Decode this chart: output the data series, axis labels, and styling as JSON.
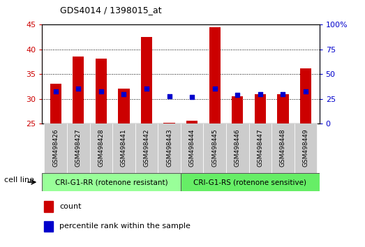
{
  "title": "GDS4014 / 1398015_at",
  "samples": [
    "GSM498426",
    "GSM498427",
    "GSM498428",
    "GSM498441",
    "GSM498442",
    "GSM498443",
    "GSM498444",
    "GSM498445",
    "GSM498446",
    "GSM498447",
    "GSM498448",
    "GSM498449"
  ],
  "count_values": [
    33,
    38.5,
    38.2,
    32,
    42.5,
    25.2,
    25.5,
    44.5,
    30.5,
    31,
    31,
    36.2
  ],
  "percentile_values": [
    31.5,
    32,
    31.5,
    31,
    32,
    30.5,
    30.3,
    32,
    30.8,
    31,
    31,
    31.5
  ],
  "ylim_left": [
    25,
    45
  ],
  "ylim_right": [
    0,
    100
  ],
  "yticks_left": [
    25,
    30,
    35,
    40,
    45
  ],
  "yticks_right": [
    0,
    25,
    50,
    75,
    100
  ],
  "bar_color": "#CC0000",
  "dot_color": "#0000CC",
  "group1_label": "CRI-G1-RR (rotenone resistant)",
  "group2_label": "CRI-G1-RS (rotenone sensitive)",
  "group_bg1": "#99FF99",
  "group_bg2": "#66EE66",
  "cell_line_label": "cell line",
  "legend_count": "count",
  "legend_percentile": "percentile rank within the sample",
  "bar_width": 0.5,
  "axis_bg": "#FFFFFF",
  "tick_bg": "#CCCCCC"
}
